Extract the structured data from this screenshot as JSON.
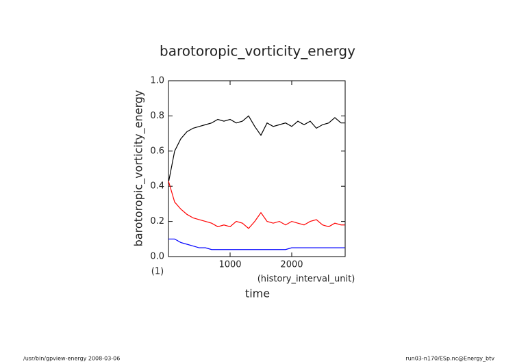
{
  "chart_data": {
    "type": "line",
    "title": "barotoropic_vorticity_energy",
    "ylabel": "barotoropic_vorticity_energy",
    "yunits": "(1)",
    "xlabel": "time",
    "xunits": "(history_interval_unit)",
    "footer_left": "/usr/bin/gpview-energy  2008-03-06",
    "footer_right": "run03-n170/ESp.nc@Energy_btv",
    "x": [
      0,
      100,
      200,
      300,
      400,
      500,
      600,
      700,
      800,
      900,
      1000,
      1100,
      1200,
      1300,
      1400,
      1500,
      1600,
      1700,
      1800,
      1900,
      2000,
      2100,
      2200,
      2300,
      2400,
      2500,
      2600,
      2700,
      2800,
      2860
    ],
    "series": [
      {
        "color": "#000000",
        "values": [
          0.42,
          0.6,
          0.67,
          0.71,
          0.73,
          0.74,
          0.75,
          0.76,
          0.78,
          0.77,
          0.78,
          0.76,
          0.77,
          0.8,
          0.74,
          0.69,
          0.76,
          0.74,
          0.75,
          0.76,
          0.74,
          0.77,
          0.75,
          0.77,
          0.73,
          0.75,
          0.76,
          0.79,
          0.76,
          0.76
        ]
      },
      {
        "color": "#ff0000",
        "values": [
          0.43,
          0.31,
          0.27,
          0.24,
          0.22,
          0.21,
          0.2,
          0.19,
          0.17,
          0.18,
          0.17,
          0.2,
          0.19,
          0.16,
          0.2,
          0.25,
          0.2,
          0.19,
          0.2,
          0.18,
          0.2,
          0.19,
          0.18,
          0.2,
          0.21,
          0.18,
          0.17,
          0.19,
          0.18,
          0.18
        ]
      },
      {
        "color": "#0000ff",
        "values": [
          0.1,
          0.1,
          0.08,
          0.07,
          0.06,
          0.05,
          0.05,
          0.04,
          0.04,
          0.04,
          0.04,
          0.04,
          0.04,
          0.04,
          0.04,
          0.04,
          0.04,
          0.04,
          0.04,
          0.04,
          0.05,
          0.05,
          0.05,
          0.05,
          0.05,
          0.05,
          0.05,
          0.05,
          0.05,
          0.05
        ]
      }
    ],
    "xlim": [
      0,
      2867
    ],
    "xticks": [
      1000,
      2000
    ],
    "ylim": [
      0,
      1
    ],
    "yticks": [
      {
        "value": 0,
        "label": "0.0"
      },
      {
        "value": 0.2,
        "label": "0.2"
      },
      {
        "value": 0.4,
        "label": "0.4"
      },
      {
        "value": 0.6,
        "label": "0.6"
      },
      {
        "value": 0.8,
        "label": "0.8"
      },
      {
        "value": 1,
        "label": "1.0"
      }
    ]
  }
}
